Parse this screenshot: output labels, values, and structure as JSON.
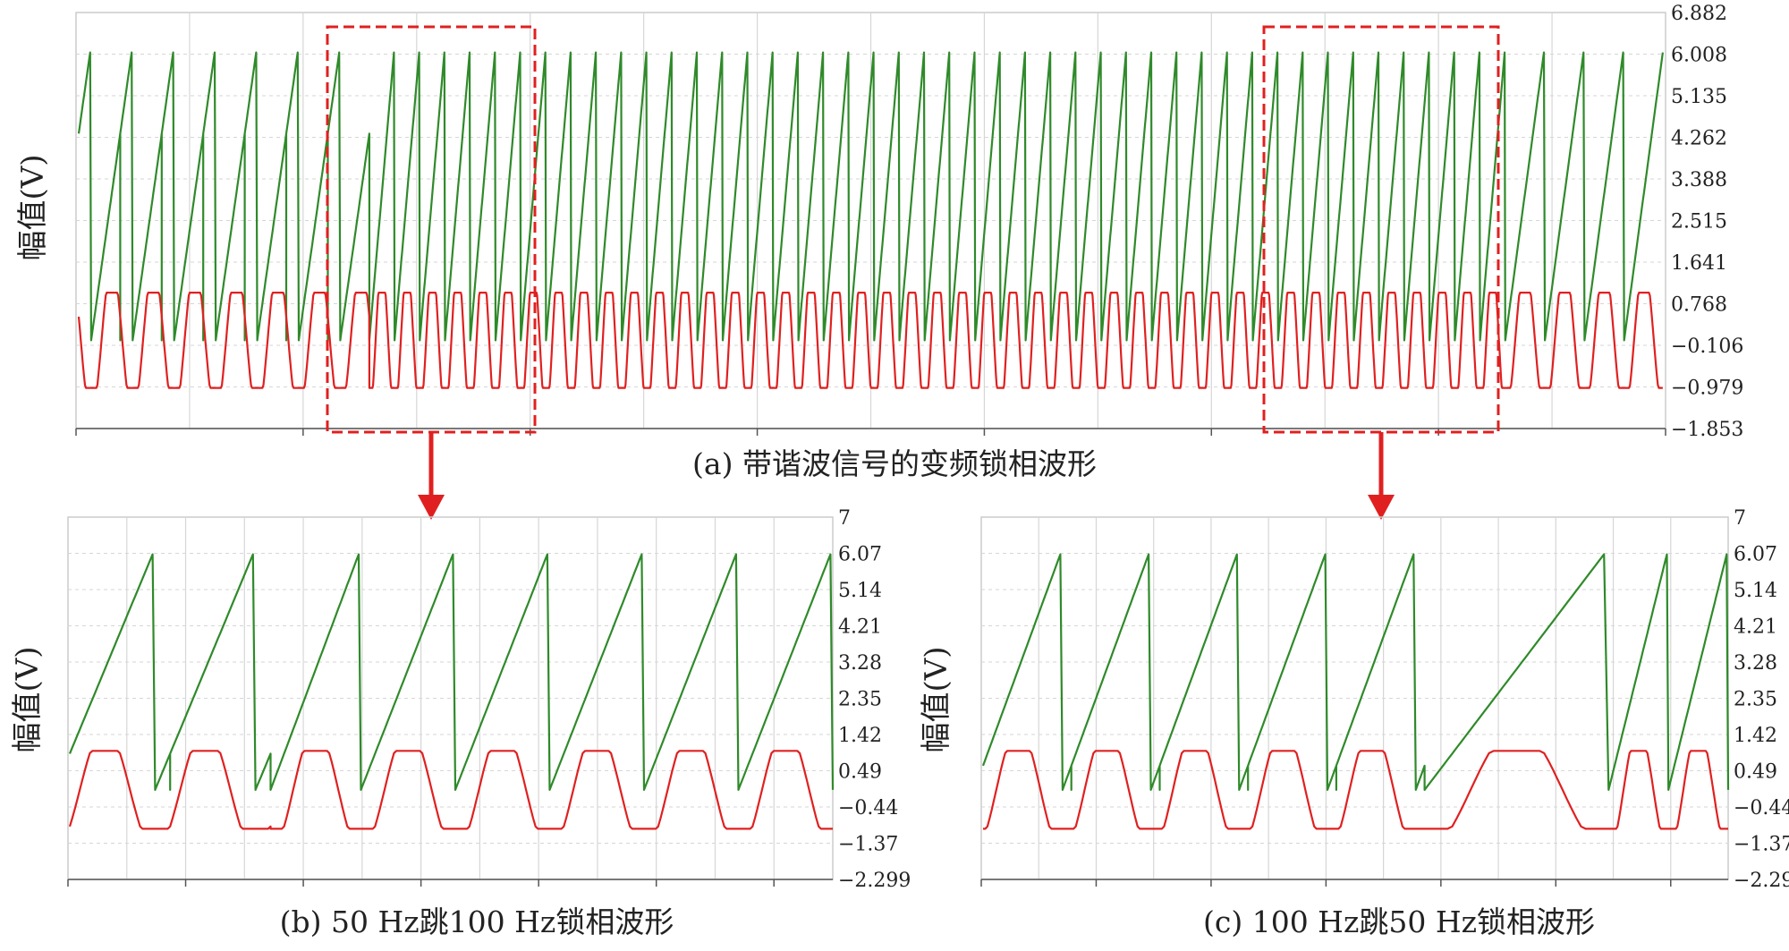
{
  "chart_data": [
    {
      "id": "a",
      "type": "line",
      "caption": "(a) 带谐波信号的变频锁相波形",
      "ylabel": "幅值(V)",
      "ylim": [
        -1.853,
        6.882
      ],
      "yticks": [
        "6.882",
        "6.008",
        "5.135",
        "4.262",
        "3.388",
        "2.515",
        "1.641",
        "0.768",
        "−0.106",
        "−0.979",
        "−1.853"
      ],
      "series": [
        {
          "key": "phase",
          "color": "#2f8a2a",
          "min": 0.0,
          "max": 6.2
        },
        {
          "key": "voltage",
          "color": "#e02020",
          "min": -1.0,
          "max": 1.0
        }
      ],
      "segments": [
        {
          "periods": 5,
          "freq_hz": 50
        },
        {
          "periods": 2,
          "freq_hz": 50
        },
        {
          "periods": 42,
          "freq_hz": 100
        },
        {
          "periods": 3,
          "freq_hz": 100
        },
        {
          "periods": 5,
          "freq_hz": 50
        }
      ]
    },
    {
      "id": "b",
      "type": "line",
      "caption": "(b) 50 Hz跳100 Hz锁相波形",
      "ylabel": "幅值(V)",
      "ylim": [
        -2.299,
        7
      ],
      "yticks": [
        "7",
        "6.07",
        "5.14",
        "4.21",
        "3.28",
        "2.35",
        "1.42",
        "0.49",
        "−0.44",
        "−1.37",
        "−2.299"
      ],
      "series": [
        {
          "key": "phase",
          "color": "#2f8a2a",
          "min": 0.0,
          "max": 6.2
        },
        {
          "key": "voltage",
          "color": "#e02020",
          "min": -1.0,
          "max": 1.0
        }
      ]
    },
    {
      "id": "c",
      "type": "line",
      "caption": "(c) 100 Hz跳50 Hz锁相波形",
      "ylabel": "幅值(V)",
      "ylim": [
        -2.299,
        7
      ],
      "yticks": [
        "7",
        "6.07",
        "5.14",
        "4.21",
        "3.28",
        "2.35",
        "1.42",
        "0.49",
        "−0.44",
        "−1.37",
        "−2.299"
      ],
      "series": [
        {
          "key": "phase",
          "color": "#2f8a2a",
          "min": 0.0,
          "max": 6.2
        },
        {
          "key": "voltage",
          "color": "#e02020",
          "min": -1.0,
          "max": 1.0
        }
      ]
    }
  ]
}
